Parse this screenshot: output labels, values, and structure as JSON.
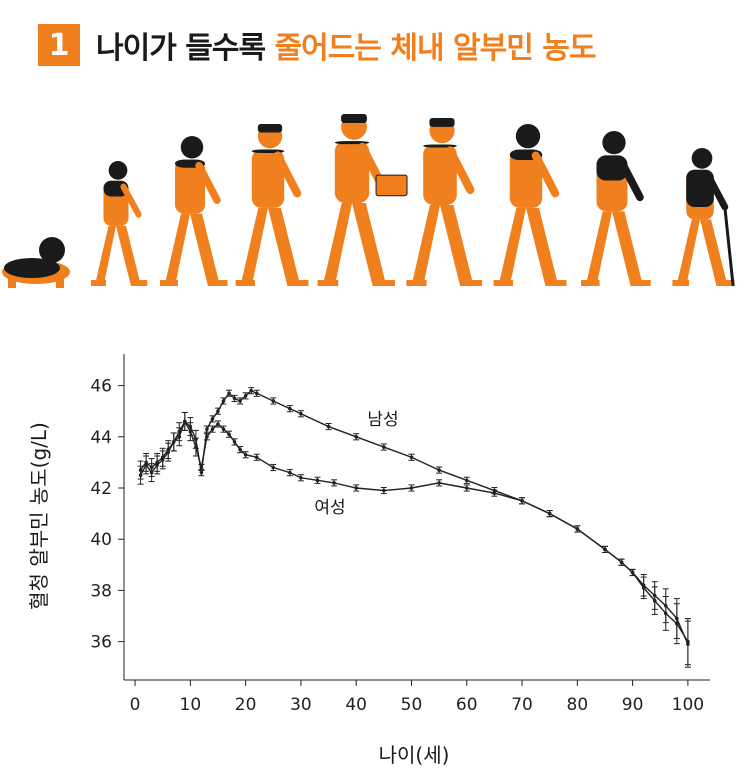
{
  "header": {
    "badge": "1",
    "title_dark": "나이가 들수록",
    "title_accent": "줄어드는 체내 알부민 농도"
  },
  "colors": {
    "accent": "#f07f1e",
    "dark": "#1a1a1a"
  },
  "chart_data": {
    "type": "line",
    "xlabel": "나이(세)",
    "ylabel": "혈청 알부민 농도(g/L)",
    "xlim": [
      -2,
      104
    ],
    "ylim": [
      34.5,
      47
    ],
    "xticks": [
      0,
      10,
      20,
      30,
      40,
      50,
      60,
      70,
      80,
      90,
      100
    ],
    "yticks": [
      36,
      38,
      40,
      42,
      44,
      46
    ],
    "series": [
      {
        "name": "남성",
        "x": [
          1,
          2,
          3,
          4,
          5,
          6,
          7,
          8,
          9,
          10,
          11,
          12,
          13,
          14,
          15,
          16,
          17,
          18,
          19,
          20,
          21,
          22,
          25,
          28,
          30,
          35,
          40,
          45,
          50,
          55,
          60,
          65,
          70,
          75,
          80,
          85,
          88,
          90,
          92,
          94,
          96,
          98,
          100
        ],
        "y": [
          42.7,
          43.0,
          42.8,
          43.0,
          43.2,
          43.5,
          43.8,
          44.0,
          44.6,
          44.4,
          43.9,
          42.6,
          44.3,
          44.7,
          45.0,
          45.4,
          45.7,
          45.5,
          45.4,
          45.6,
          45.8,
          45.7,
          45.4,
          45.1,
          44.9,
          44.4,
          44.0,
          43.6,
          43.2,
          42.7,
          42.3,
          41.9,
          41.5,
          41.0,
          40.4,
          39.6,
          39.1,
          38.7,
          38.2,
          37.8,
          37.4,
          36.9,
          35.9
        ]
      },
      {
        "name": "여성",
        "x": [
          1,
          2,
          3,
          4,
          5,
          6,
          7,
          8,
          9,
          10,
          11,
          12,
          13,
          14,
          15,
          16,
          17,
          18,
          19,
          20,
          22,
          25,
          28,
          30,
          33,
          36,
          40,
          45,
          50,
          55,
          60,
          65,
          70,
          75,
          80,
          85,
          88,
          90,
          92,
          94,
          96,
          98,
          100
        ],
        "y": [
          42.5,
          42.9,
          42.6,
          42.9,
          43.1,
          43.4,
          43.8,
          44.2,
          44.6,
          44.2,
          43.6,
          42.8,
          44.0,
          44.3,
          44.5,
          44.3,
          44.1,
          43.8,
          43.5,
          43.3,
          43.2,
          42.8,
          42.6,
          42.4,
          42.3,
          42.2,
          42.0,
          41.9,
          42.0,
          42.2,
          42.0,
          41.8,
          41.5,
          41.0,
          40.4,
          39.6,
          39.1,
          38.7,
          38.1,
          37.6,
          37.1,
          36.7,
          36.0
        ]
      }
    ]
  }
}
